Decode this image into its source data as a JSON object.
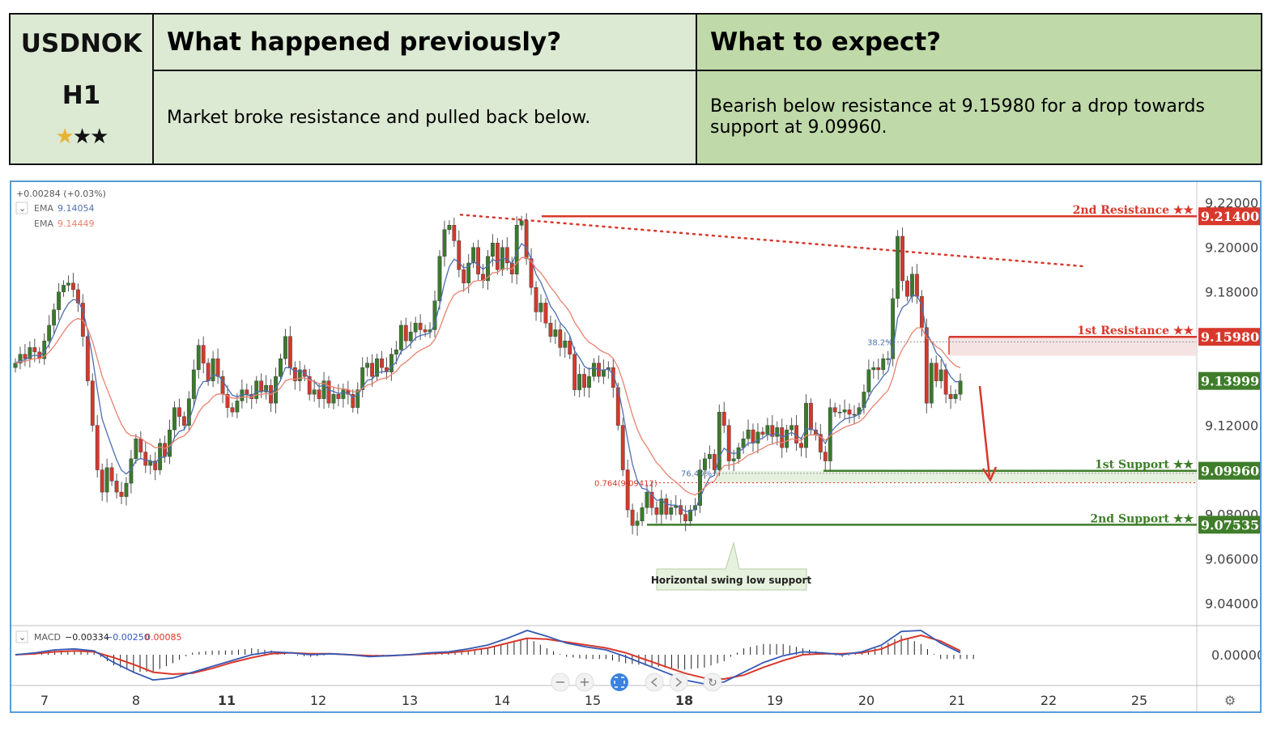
{
  "header": {
    "symbol": "USDNOK",
    "timeframe": "H1",
    "rating_filled": 1,
    "rating_total": 3,
    "prev_title": "What happened previously?",
    "expect_title": "What to expect?",
    "prev_text": "Market broke resistance and pulled back below.",
    "expect_text": "Bearish below resistance at 9.15980 for a drop towards support at 9.09960."
  },
  "legend": {
    "change": "+0.00284 (+0.03%)",
    "ema_label": "EMA",
    "ema1_value": "9.14054",
    "ema2_value": "9.14449",
    "macd_label": "MACD",
    "macd_v1": "−0.00334",
    "macd_v2": "−0.00250",
    "macd_v3": "0.00085"
  },
  "colors": {
    "up": "#3a7a2c",
    "down": "#d03a2e",
    "resistance": "#d8382c",
    "support": "#3f7d2a",
    "ema_fast": "#4d6fb0",
    "ema_slow": "#e8826e",
    "frame": "#5a9bd5"
  },
  "annotations": {
    "callout": "Horizontal swing low support",
    "fib_38": "38.2%",
    "fib_76": "76.40%",
    "fib_764": "0.764(9.09412)",
    "zoom_out": "−",
    "zoom_in": "+",
    "settings_icon": "⚙",
    "reset_icon": "↻"
  },
  "chart_data": {
    "type": "candlestick",
    "ylim": [
      9.03,
      9.225
    ],
    "yticks": [
      9.04,
      9.06,
      9.08,
      9.1,
      9.12,
      9.14,
      9.16,
      9.18,
      9.2,
      9.22
    ],
    "ytick_labels": [
      "9.04000",
      "9.06000",
      "9.08000",
      "9.10000",
      "9.12000",
      "9.14000",
      "9.16000",
      "9.18000",
      "9.20000",
      "9.22000"
    ],
    "macd_tick": "0.00000",
    "xlabels": [
      "7",
      "8",
      "11",
      "12",
      "13",
      "14",
      "15",
      "18",
      "19",
      "20",
      "21",
      "22",
      "25"
    ],
    "bold_xlabels": [
      "11",
      "18"
    ],
    "levels": [
      {
        "name": "2nd Resistance ★★",
        "price": "9.21400",
        "value": 9.214,
        "kind": "resistance"
      },
      {
        "name": "1st Resistance ★★",
        "price": "9.15980",
        "value": 9.1598,
        "kind": "resistance"
      },
      {
        "name": "",
        "price": "9.13999",
        "value": 9.13999,
        "kind": "current"
      },
      {
        "name": "1st Support ★★",
        "price": "9.09960",
        "value": 9.0996,
        "kind": "support"
      },
      {
        "name": "2nd Support ★★",
        "price": "9.07535",
        "value": 9.07535,
        "kind": "support"
      }
    ],
    "closes": [
      9.148,
      9.152,
      9.15,
      9.155,
      9.153,
      9.15,
      9.158,
      9.165,
      9.172,
      9.18,
      9.183,
      9.184,
      9.181,
      9.175,
      9.16,
      9.14,
      9.12,
      9.1,
      9.09,
      9.101,
      9.095,
      9.09,
      9.088,
      9.094,
      9.105,
      9.114,
      9.108,
      9.102,
      9.104,
      9.1,
      9.112,
      9.106,
      9.118,
      9.128,
      9.124,
      9.12,
      9.132,
      9.145,
      9.156,
      9.148,
      9.14,
      9.15,
      9.142,
      9.134,
      9.128,
      9.126,
      9.131,
      9.136,
      9.134,
      9.132,
      9.14,
      9.135,
      9.138,
      9.13,
      9.142,
      9.15,
      9.16,
      9.146,
      9.14,
      9.145,
      9.142,
      9.134,
      9.136,
      9.132,
      9.14,
      9.13,
      9.134,
      9.132,
      9.136,
      9.134,
      9.128,
      9.136,
      9.146,
      9.148,
      9.142,
      9.15,
      9.146,
      9.144,
      9.152,
      9.154,
      9.165,
      9.158,
      9.162,
      9.166,
      9.163,
      9.162,
      9.163,
      9.176,
      9.196,
      9.208,
      9.21,
      9.203,
      9.19,
      9.184,
      9.193,
      9.2,
      9.188,
      9.185,
      9.196,
      9.202,
      9.19,
      9.2,
      9.193,
      9.188,
      9.21,
      9.212,
      9.195,
      9.182,
      9.171,
      9.175,
      9.166,
      9.16,
      9.163,
      9.155,
      9.158,
      9.152,
      9.136,
      9.143,
      9.137,
      9.142,
      9.148,
      9.142,
      9.145,
      9.146,
      9.137,
      9.12,
      9.1,
      9.082,
      9.075,
      9.077,
      9.083,
      9.09,
      9.083,
      9.08,
      9.087,
      9.08,
      9.083,
      9.084,
      9.08,
      9.077,
      9.082,
      9.084,
      9.1,
      9.105,
      9.107,
      9.1,
      9.126,
      9.12,
      9.104,
      9.105,
      9.11,
      9.114,
      9.118,
      9.112,
      9.117,
      9.116,
      9.12,
      9.115,
      9.119,
      9.11,
      9.118,
      9.12,
      9.112,
      9.11,
      9.13,
      9.118,
      9.116,
      9.108,
      9.104,
      9.128,
      9.126,
      9.126,
      9.127,
      9.125,
      9.125,
      9.128,
      9.135,
      9.145,
      9.146,
      9.145,
      9.15,
      9.15,
      9.177,
      9.205,
      9.185,
      9.178,
      9.188,
      9.178,
      9.164,
      9.13,
      9.148,
      9.14,
      9.145,
      9.134,
      9.132,
      9.134,
      9.14
    ],
    "macd_fast": [
      0.0,
      0.0002,
      0.0005,
      0.0006,
      0.0004,
      -0.0008,
      -0.0018,
      -0.0026,
      -0.0024,
      -0.0018,
      -0.0012,
      -0.0006,
      0.0,
      0.0003,
      0.0002,
      0.0,
      0.0001,
      0.0,
      -0.0002,
      -0.0001,
      0.0,
      0.0002,
      0.0003,
      0.0006,
      0.001,
      0.0017,
      0.0025,
      0.0019,
      0.0012,
      0.0008,
      0.0005,
      -0.0002,
      -0.001,
      -0.0018,
      -0.0026,
      -0.003,
      -0.0028,
      -0.0018,
      -0.0008,
      -0.0001,
      0.0003,
      0.0002,
      0.0,
      0.0003,
      0.001,
      0.0024,
      0.0025,
      0.0012,
      0.0002
    ],
    "macd_slow": [
      0.0,
      0.0001,
      0.0003,
      0.0004,
      0.0003,
      -0.0003,
      -0.001,
      -0.0018,
      -0.002,
      -0.0019,
      -0.0014,
      -0.0008,
      -0.0003,
      0.0001,
      0.0002,
      0.0001,
      0.0001,
      0.0,
      -0.0001,
      -0.0001,
      0.0,
      0.0001,
      0.0002,
      0.0004,
      0.0007,
      0.0012,
      0.0017,
      0.0016,
      0.0013,
      0.001,
      0.0007,
      0.0002,
      -0.0005,
      -0.0012,
      -0.0019,
      -0.0024,
      -0.0025,
      -0.0021,
      -0.0013,
      -0.0006,
      0.0,
      0.0001,
      0.0001,
      0.0002,
      0.0006,
      0.0015,
      0.002,
      0.0014,
      0.0004
    ]
  }
}
